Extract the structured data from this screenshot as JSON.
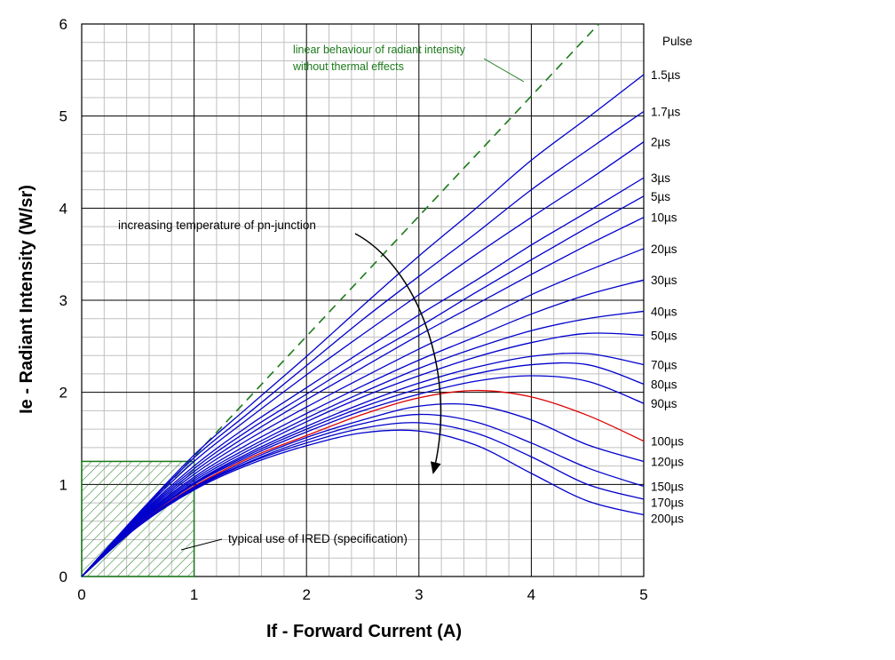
{
  "chart_data": {
    "type": "line",
    "xlabel": "If - Forward Current (A)",
    "ylabel": "Ie - Radiant Intensity (W/sr)",
    "xlim": [
      0,
      5
    ],
    "ylim": [
      0,
      6
    ],
    "x_ticks": [
      "0",
      "1",
      "2",
      "3",
      "4",
      "5"
    ],
    "y_ticks": [
      "0",
      "1",
      "2",
      "3",
      "4",
      "5",
      "6"
    ],
    "grid": true,
    "minor_grid": true,
    "legend_title": "Pulse",
    "colors": {
      "curves": "#0000cc",
      "highlight": "#dd0000",
      "linear": "#1a7a1a",
      "arrow": "#000000",
      "grid_major": "#000000",
      "grid_minor": "#c0c0c0"
    },
    "series": [
      {
        "name": "1.5µs",
        "x": [
          0,
          0.5,
          1,
          1.5,
          2,
          2.5,
          3,
          3.5,
          4,
          4.5,
          5
        ],
        "y": [
          0,
          0.68,
          1.32,
          1.86,
          2.39,
          2.94,
          3.48,
          3.99,
          4.52,
          4.98,
          5.45
        ]
      },
      {
        "name": "1.7µs",
        "x": [
          0,
          0.5,
          1,
          1.5,
          2,
          2.5,
          3,
          3.5,
          4,
          4.5,
          5
        ],
        "y": [
          0,
          0.67,
          1.29,
          1.79,
          2.29,
          2.79,
          3.26,
          3.72,
          4.2,
          4.63,
          5.05
        ]
      },
      {
        "name": "2µs",
        "x": [
          0,
          0.5,
          1,
          1.5,
          2,
          2.5,
          3,
          3.5,
          4,
          4.5,
          5
        ],
        "y": [
          0,
          0.66,
          1.25,
          1.73,
          2.19,
          2.63,
          3.06,
          3.49,
          3.9,
          4.3,
          4.72
        ]
      },
      {
        "name": "3µs",
        "x": [
          0,
          0.5,
          1,
          1.5,
          2,
          2.5,
          3,
          3.5,
          4,
          4.5,
          5
        ],
        "y": [
          0,
          0.65,
          1.2,
          1.65,
          2.05,
          2.45,
          2.84,
          3.21,
          3.6,
          3.96,
          4.33
        ]
      },
      {
        "name": "5µs",
        "x": [
          0,
          0.5,
          1,
          1.5,
          2,
          2.5,
          3,
          3.5,
          4,
          4.5,
          5
        ],
        "y": [
          0,
          0.64,
          1.17,
          1.6,
          1.98,
          2.36,
          2.71,
          3.08,
          3.44,
          3.79,
          4.13
        ]
      },
      {
        "name": "10µs",
        "x": [
          0,
          0.5,
          1,
          1.5,
          2,
          2.5,
          3,
          3.5,
          4,
          4.5,
          5
        ],
        "y": [
          0,
          0.63,
          1.14,
          1.55,
          1.92,
          2.27,
          2.62,
          2.95,
          3.28,
          3.6,
          3.9
        ]
      },
      {
        "name": "20µs",
        "x": [
          0,
          0.5,
          1,
          1.5,
          2,
          2.5,
          3,
          3.5,
          4,
          4.5,
          5
        ],
        "y": [
          0,
          0.62,
          1.11,
          1.5,
          1.84,
          2.16,
          2.47,
          2.76,
          3.06,
          3.32,
          3.56
        ]
      },
      {
        "name": "30µs",
        "x": [
          0,
          0.5,
          1,
          1.5,
          2,
          2.5,
          3,
          3.5,
          4,
          4.5,
          5
        ],
        "y": [
          0,
          0.61,
          1.08,
          1.45,
          1.77,
          2.07,
          2.35,
          2.6,
          2.85,
          3.06,
          3.22
        ]
      },
      {
        "name": "40µs",
        "x": [
          0,
          0.5,
          1,
          1.5,
          2,
          2.5,
          3,
          3.5,
          4,
          4.5,
          5
        ],
        "y": [
          0,
          0.6,
          1.06,
          1.41,
          1.72,
          2.0,
          2.26,
          2.48,
          2.67,
          2.8,
          2.88
        ]
      },
      {
        "name": "50µs",
        "x": [
          0,
          0.5,
          1,
          1.5,
          2,
          2.5,
          3,
          3.5,
          4,
          4.5,
          5
        ],
        "y": [
          0,
          0.59,
          1.04,
          1.38,
          1.68,
          1.95,
          2.18,
          2.38,
          2.54,
          2.64,
          2.62
        ]
      },
      {
        "name": "70µs",
        "x": [
          0,
          0.5,
          1,
          1.5,
          2,
          2.5,
          3,
          3.5,
          4,
          4.5,
          5
        ],
        "y": [
          0,
          0.58,
          1.02,
          1.35,
          1.63,
          1.88,
          2.1,
          2.27,
          2.39,
          2.42,
          2.3
        ]
      },
      {
        "name": "80µs",
        "x": [
          0,
          0.5,
          1,
          1.5,
          2,
          2.5,
          3,
          3.5,
          4,
          4.5,
          5
        ],
        "y": [
          0,
          0.58,
          1.01,
          1.33,
          1.6,
          1.84,
          2.04,
          2.2,
          2.3,
          2.3,
          2.09
        ]
      },
      {
        "name": "90µs",
        "x": [
          0,
          0.5,
          1,
          1.5,
          2,
          2.5,
          3,
          3.5,
          4,
          4.5,
          5
        ],
        "y": [
          0,
          0.57,
          1.0,
          1.31,
          1.57,
          1.8,
          1.98,
          2.12,
          2.18,
          2.12,
          1.88
        ]
      },
      {
        "name": "100µs",
        "x": [
          0,
          0.5,
          1,
          1.5,
          2,
          2.5,
          3,
          3.5,
          4,
          4.5,
          5
        ],
        "y": [
          0,
          0.56,
          0.98,
          1.29,
          1.53,
          1.76,
          1.94,
          2.02,
          1.95,
          1.75,
          1.47
        ],
        "highlight": true
      },
      {
        "name": "120µs",
        "x": [
          0,
          0.5,
          1,
          1.5,
          2,
          2.5,
          3,
          3.5,
          4,
          4.5,
          5
        ],
        "y": [
          0,
          0.56,
          0.97,
          1.27,
          1.51,
          1.7,
          1.85,
          1.86,
          1.7,
          1.43,
          1.25
        ]
      },
      {
        "name": "150µs",
        "x": [
          0,
          0.5,
          1,
          1.5,
          2,
          2.5,
          3,
          3.5,
          4,
          4.5,
          5
        ],
        "y": [
          0,
          0.55,
          0.96,
          1.25,
          1.48,
          1.66,
          1.76,
          1.68,
          1.45,
          1.18,
          0.98
        ]
      },
      {
        "name": "170µs",
        "x": [
          0,
          0.5,
          1,
          1.5,
          2,
          2.5,
          3,
          3.5,
          4,
          4.5,
          5
        ],
        "y": [
          0,
          0.55,
          0.95,
          1.24,
          1.45,
          1.61,
          1.67,
          1.56,
          1.3,
          1.0,
          0.84
        ]
      },
      {
        "name": "200µs",
        "x": [
          0,
          0.5,
          1,
          1.5,
          2,
          2.5,
          3,
          3.5,
          4,
          4.5,
          5
        ],
        "y": [
          0,
          0.54,
          0.94,
          1.22,
          1.42,
          1.56,
          1.58,
          1.43,
          1.12,
          0.82,
          0.67
        ]
      }
    ],
    "linear_reference": {
      "x": [
        0,
        4.6
      ],
      "y": [
        0,
        6.0
      ]
    },
    "spec_region": {
      "x": [
        0,
        1
      ],
      "y": [
        0,
        1.25
      ]
    },
    "annotations": {
      "linear_line1": "linear behaviour of radiant intensity",
      "linear_line2": "without thermal effects",
      "temperature": "increasing temperature of pn-junction",
      "spec": "typical use of IRED (specification)"
    }
  }
}
